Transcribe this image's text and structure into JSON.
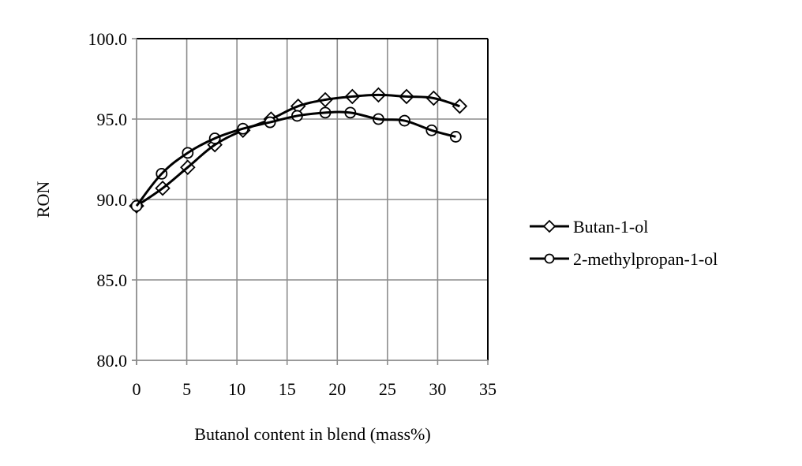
{
  "chart_data": {
    "type": "line",
    "title": "",
    "xlabel": "Butanol content in blend (mass%)",
    "ylabel": "RON",
    "xlim": [
      0,
      35
    ],
    "ylim": [
      80,
      100
    ],
    "x_ticks": [
      0,
      5,
      10,
      15,
      20,
      25,
      30,
      35
    ],
    "x_tick_labels": [
      "0",
      "5",
      "10",
      "15",
      "20",
      "25",
      "30",
      "35"
    ],
    "y_ticks": [
      80,
      85,
      90,
      95,
      100
    ],
    "y_tick_labels": [
      "80.0",
      "85.0",
      "90.0",
      "95.0",
      "100.0"
    ],
    "grid": true,
    "legend_position": "right",
    "series": [
      {
        "name": "Butan-1-ol",
        "marker": "diamond",
        "color": "#000000",
        "x": [
          0,
          2.6,
          5.1,
          7.8,
          10.6,
          13.4,
          16.1,
          18.8,
          21.5,
          24.1,
          26.9,
          29.6,
          32.2
        ],
        "values": [
          89.6,
          90.7,
          92.0,
          93.4,
          94.3,
          95.0,
          95.8,
          96.2,
          96.4,
          96.5,
          96.4,
          96.3,
          95.8
        ]
      },
      {
        "name": "2-methylpropan-1-ol",
        "marker": "circle",
        "color": "#000000",
        "x": [
          0,
          2.5,
          5.1,
          7.8,
          10.6,
          13.3,
          16.0,
          18.8,
          21.3,
          24.1,
          26.7,
          29.4,
          31.8
        ],
        "values": [
          89.6,
          91.6,
          92.9,
          93.8,
          94.4,
          94.8,
          95.2,
          95.4,
          95.4,
          95.0,
          94.9,
          94.3,
          93.9
        ]
      }
    ]
  }
}
